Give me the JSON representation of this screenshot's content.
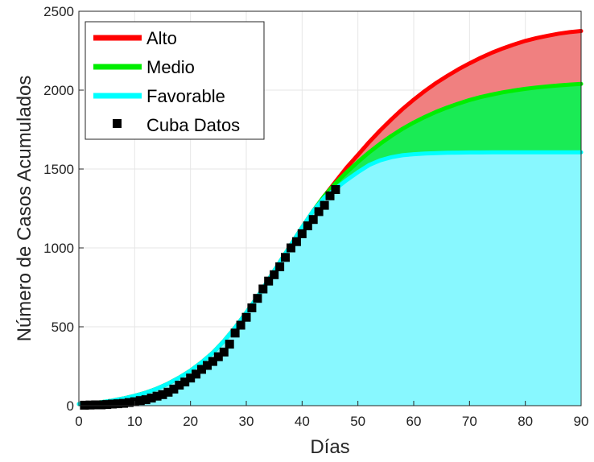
{
  "chart_data": {
    "type": "area",
    "xlabel": "Días",
    "ylabel": "Número de Casos Acumulados",
    "xlim": [
      0,
      90
    ],
    "ylim": [
      0,
      2500
    ],
    "xticks": [
      0,
      10,
      20,
      30,
      40,
      50,
      60,
      70,
      80,
      90
    ],
    "yticks": [
      0,
      500,
      1000,
      1500,
      2000,
      2500
    ],
    "grid": true,
    "legend_position": "top-left",
    "x": [
      0,
      2,
      4,
      6,
      8,
      10,
      12,
      14,
      16,
      18,
      20,
      22,
      24,
      26,
      28,
      30,
      32,
      34,
      36,
      38,
      40,
      42,
      44,
      46,
      48,
      50,
      52,
      54,
      56,
      58,
      60,
      62,
      64,
      66,
      68,
      70,
      72,
      74,
      76,
      78,
      80,
      82,
      84,
      86,
      88,
      90
    ],
    "series": [
      {
        "name": "Alto",
        "color": "#ff0000",
        "fill": "#f08080",
        "values": [
          10,
          15,
          22,
          32,
          46,
          62,
          82,
          108,
          140,
          178,
          222,
          275,
          335,
          410,
          495,
          590,
          690,
          800,
          910,
          1020,
          1130,
          1235,
          1330,
          1420,
          1510,
          1590,
          1670,
          1745,
          1815,
          1880,
          1940,
          1995,
          2045,
          2090,
          2132,
          2170,
          2205,
          2237,
          2265,
          2290,
          2312,
          2330,
          2345,
          2358,
          2368,
          2375
        ]
      },
      {
        "name": "Medio",
        "color": "#00ee00",
        "fill": "#1aeb55",
        "values": [
          10,
          15,
          22,
          32,
          46,
          62,
          82,
          108,
          140,
          178,
          222,
          275,
          335,
          410,
          495,
          590,
          690,
          800,
          910,
          1020,
          1130,
          1235,
          1330,
          1410,
          1480,
          1545,
          1605,
          1660,
          1710,
          1755,
          1795,
          1830,
          1862,
          1890,
          1915,
          1937,
          1956,
          1972,
          1986,
          1998,
          2008,
          2017,
          2024,
          2030,
          2035,
          2040
        ]
      },
      {
        "name": "Favorable",
        "color": "#00ffff",
        "fill": "#88f8ff",
        "values": [
          10,
          15,
          22,
          32,
          46,
          62,
          82,
          108,
          140,
          178,
          222,
          275,
          335,
          410,
          495,
          590,
          690,
          800,
          910,
          1020,
          1130,
          1235,
          1320,
          1375,
          1430,
          1480,
          1525,
          1555,
          1575,
          1587,
          1594,
          1598,
          1601,
          1603,
          1604,
          1605,
          1605,
          1606,
          1606,
          1606,
          1606,
          1606,
          1606,
          1606,
          1606,
          1606
        ]
      }
    ],
    "data_points": {
      "name": "Cuba Datos",
      "color": "#000000",
      "x": [
        1,
        2,
        3,
        4,
        5,
        6,
        7,
        8,
        9,
        10,
        11,
        12,
        13,
        14,
        15,
        16,
        17,
        18,
        19,
        20,
        21,
        22,
        23,
        24,
        25,
        26,
        27,
        28,
        29,
        30,
        31,
        32,
        33,
        34,
        35,
        36,
        37,
        38,
        39,
        40,
        41,
        42,
        43,
        44,
        45,
        46
      ],
      "y": [
        3,
        4,
        5,
        5,
        7,
        10,
        12,
        15,
        20,
        25,
        32,
        38,
        48,
        60,
        70,
        85,
        105,
        130,
        150,
        175,
        200,
        230,
        255,
        280,
        310,
        340,
        390,
        460,
        510,
        560,
        620,
        680,
        740,
        790,
        830,
        880,
        940,
        1000,
        1040,
        1090,
        1140,
        1180,
        1230,
        1270,
        1330,
        1370
      ]
    }
  }
}
